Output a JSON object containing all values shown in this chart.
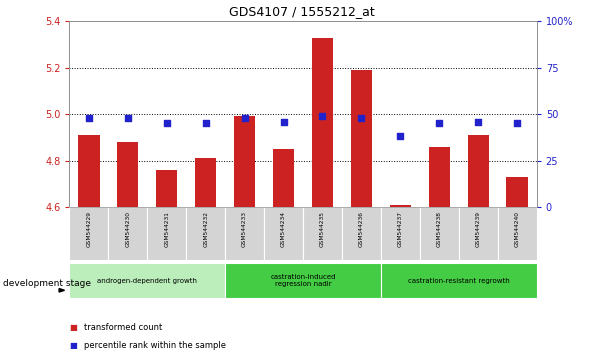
{
  "title": "GDS4107 / 1555212_at",
  "categories": [
    "GSM544229",
    "GSM544230",
    "GSM544231",
    "GSM544232",
    "GSM544233",
    "GSM544234",
    "GSM544235",
    "GSM544236",
    "GSM544237",
    "GSM544238",
    "GSM544239",
    "GSM544240"
  ],
  "bar_values": [
    4.91,
    4.88,
    4.76,
    4.81,
    4.99,
    4.85,
    5.33,
    5.19,
    4.61,
    4.86,
    4.91,
    4.73
  ],
  "dot_values": [
    48,
    48,
    45,
    45,
    48,
    46,
    49,
    48,
    38,
    45,
    46,
    45
  ],
  "bar_color": "#cc2222",
  "dot_color": "#2222cc",
  "bar_bottom": 4.6,
  "ylim_left": [
    4.6,
    5.4
  ],
  "ylim_right": [
    0,
    100
  ],
  "yticks_left": [
    4.6,
    4.8,
    5.0,
    5.2,
    5.4
  ],
  "yticks_right": [
    0,
    25,
    50,
    75,
    100
  ],
  "grid_values": [
    4.8,
    5.0,
    5.2
  ],
  "background_plot": "#ffffff",
  "group_labels": [
    "androgen-dependent growth",
    "castration-induced\nregression nadir",
    "castration-resistant regrowth"
  ],
  "group_ranges": [
    [
      0,
      4
    ],
    [
      4,
      8
    ],
    [
      8,
      12
    ]
  ],
  "group_colors": [
    "#bbeebb",
    "#44cc44",
    "#44cc44"
  ],
  "dev_stage_label": "development stage",
  "legend_items": [
    "transformed count",
    "percentile rank within the sample"
  ],
  "tick_color_left": "#cc2222",
  "tick_color_right": "#2222cc"
}
